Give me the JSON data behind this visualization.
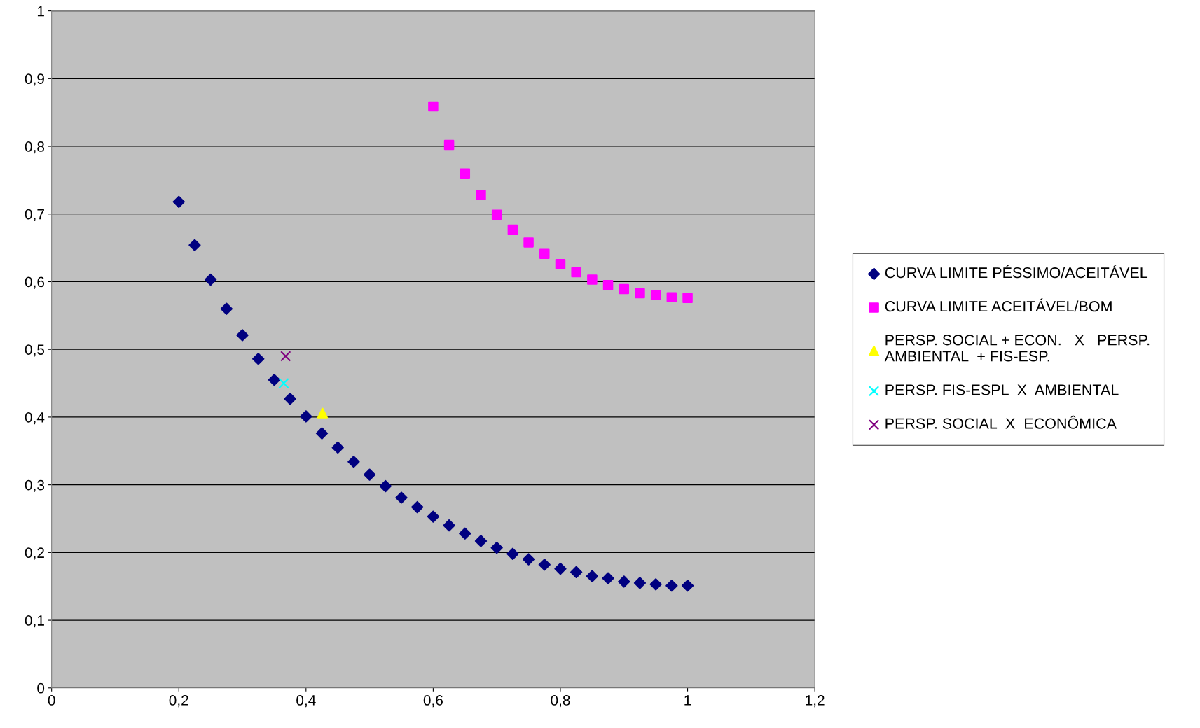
{
  "chart_data": {
    "type": "scatter",
    "xlim": [
      0,
      1.2
    ],
    "ylim": [
      0,
      1
    ],
    "xticks": [
      0,
      {
        "value": 0.2,
        "label": "0,2"
      },
      {
        "value": 0.4,
        "label": "0,4"
      },
      {
        "value": 0.6,
        "label": "0,6"
      },
      {
        "value": 0.8,
        "label": "0,8"
      },
      1,
      {
        "value": 1.2,
        "label": "1,2"
      }
    ],
    "yticks": [
      0,
      {
        "value": 0.1,
        "label": "0,1"
      },
      {
        "value": 0.2,
        "label": "0,2"
      },
      {
        "value": 0.3,
        "label": "0,3"
      },
      {
        "value": 0.4,
        "label": "0,4"
      },
      {
        "value": 0.5,
        "label": "0,5"
      },
      {
        "value": 0.6,
        "label": "0,6"
      },
      {
        "value": 0.7,
        "label": "0,7"
      },
      {
        "value": 0.8,
        "label": "0,8"
      },
      {
        "value": 0.9,
        "label": "0,9"
      },
      1
    ],
    "grid": "y",
    "legend": "right",
    "series": [
      {
        "name": "CURVA LIMITE PÉSSIMO/ACEITÁVEL",
        "color": "#000080",
        "marker": "diamond",
        "x": [
          0.2,
          0.225,
          0.25,
          0.275,
          0.3,
          0.325,
          0.35,
          0.375,
          0.4,
          0.425,
          0.45,
          0.475,
          0.5,
          0.525,
          0.55,
          0.575,
          0.6,
          0.625,
          0.65,
          0.675,
          0.7,
          0.725,
          0.75,
          0.775,
          0.8,
          0.825,
          0.85,
          0.875,
          0.9,
          0.925,
          0.95,
          0.975,
          1.0
        ],
        "values": [
          0.718,
          0.654,
          0.603,
          0.56,
          0.521,
          0.486,
          0.455,
          0.427,
          0.401,
          0.376,
          0.355,
          0.334,
          0.315,
          0.298,
          0.281,
          0.267,
          0.253,
          0.24,
          0.228,
          0.217,
          0.207,
          0.198,
          0.19,
          0.182,
          0.176,
          0.171,
          0.165,
          0.162,
          0.157,
          0.155,
          0.153,
          0.151,
          0.151
        ]
      },
      {
        "name": "CURVA LIMITE ACEITÁVEL/BOM",
        "color": "#ff00ff",
        "marker": "square",
        "x": [
          0.6,
          0.625,
          0.65,
          0.675,
          0.7,
          0.725,
          0.75,
          0.775,
          0.8,
          0.825,
          0.85,
          0.875,
          0.9,
          0.925,
          0.95,
          0.975,
          1.0
        ],
        "values": [
          0.859,
          0.802,
          0.76,
          0.728,
          0.699,
          0.677,
          0.658,
          0.641,
          0.626,
          0.614,
          0.603,
          0.595,
          0.589,
          0.583,
          0.58,
          0.577,
          0.576
        ]
      },
      {
        "name": "PERSP. SOCIAL + ECON.   X   PERSP.\nAMBIENTAL  + FIS-ESP.",
        "color": "#ffff00",
        "marker": "triangle",
        "x": [
          0.426
        ],
        "values": [
          0.406
        ]
      },
      {
        "name": "PERSP. FIS-ESPL  X  AMBIENTAL",
        "color": "#00ffff",
        "marker": "cross",
        "x": [
          0.365
        ],
        "values": [
          0.45
        ]
      },
      {
        "name": "PERSP. SOCIAL  X  ECONÔMICA",
        "color": "#800080",
        "marker": "cross",
        "x": [
          0.368
        ],
        "values": [
          0.49
        ]
      }
    ]
  }
}
